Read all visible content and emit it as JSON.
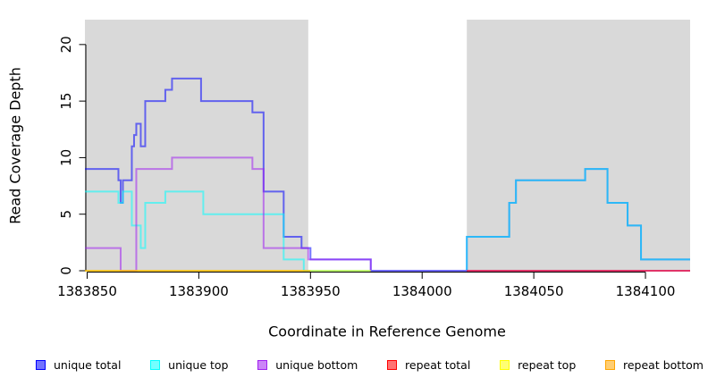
{
  "figure": {
    "x_axis_title": "Coordinate in Reference Genome",
    "y_axis_title": "Read Coverage Depth"
  },
  "chart_data": {
    "type": "step-line",
    "title": "",
    "xlabel": "Coordinate in Reference Genome",
    "ylabel": "Read Coverage Depth",
    "xlim": [
      1383849,
      1384120
    ],
    "ylim": [
      0,
      22.2
    ],
    "x_ticks": [
      1383850,
      1383900,
      1383950,
      1384000,
      1384050,
      1384100
    ],
    "y_ticks": [
      0,
      5,
      10,
      15,
      20
    ],
    "grid": false,
    "panel_background": "#ffffff",
    "shaded_region_color": "#d9d9d9",
    "shaded_regions": [
      {
        "x1": 1383849,
        "x2": 1383949
      },
      {
        "x1": 1384020,
        "x2": 1384120
      }
    ],
    "line_opacity": 0.55,
    "line_width": 2,
    "series": [
      {
        "name": "unique total",
        "color": "#0000ff",
        "end": 1384120,
        "points": [
          [
            1383849,
            9
          ],
          [
            1383864,
            8
          ],
          [
            1383865,
            6
          ],
          [
            1383866,
            8
          ],
          [
            1383870,
            11
          ],
          [
            1383871,
            12
          ],
          [
            1383872,
            13
          ],
          [
            1383874,
            11
          ],
          [
            1383876,
            15
          ],
          [
            1383885,
            16
          ],
          [
            1383888,
            17
          ],
          [
            1383901,
            15
          ],
          [
            1383924,
            14
          ],
          [
            1383929,
            7
          ],
          [
            1383938,
            3
          ],
          [
            1383946,
            2
          ],
          [
            1383950,
            1
          ],
          [
            1383977,
            0
          ],
          [
            1384020,
            3
          ],
          [
            1384039,
            6
          ],
          [
            1384042,
            8
          ],
          [
            1384073,
            9
          ],
          [
            1384083,
            6
          ],
          [
            1384092,
            4
          ],
          [
            1384098,
            1
          ]
        ]
      },
      {
        "name": "unique top",
        "color": "#00ffff",
        "end": 1384120,
        "points": [
          [
            1383849,
            7
          ],
          [
            1383864,
            6
          ],
          [
            1383866,
            7
          ],
          [
            1383870,
            4
          ],
          [
            1383874,
            2
          ],
          [
            1383876,
            6
          ],
          [
            1383885,
            7
          ],
          [
            1383902,
            5
          ],
          [
            1383938,
            1
          ],
          [
            1383947,
            0
          ],
          [
            1384020,
            3
          ],
          [
            1384039,
            6
          ],
          [
            1384042,
            8
          ],
          [
            1384073,
            9
          ],
          [
            1384083,
            6
          ],
          [
            1384092,
            4
          ],
          [
            1384098,
            1
          ]
        ]
      },
      {
        "name": "unique bottom",
        "color": "#a020f0",
        "end": 1384120,
        "points": [
          [
            1383849,
            2
          ],
          [
            1383865,
            0
          ],
          [
            1383872,
            9
          ],
          [
            1383888,
            10
          ],
          [
            1383924,
            9
          ],
          [
            1383929,
            2
          ],
          [
            1383949,
            1
          ],
          [
            1383977,
            0
          ]
        ]
      },
      {
        "name": "repeat total",
        "color": "#ff0000",
        "end": 1384120,
        "points": [
          [
            1384020,
            0
          ]
        ]
      },
      {
        "name": "repeat top",
        "color": "#ffff00",
        "end": 1383977,
        "points": [
          [
            1383849,
            0
          ]
        ]
      },
      {
        "name": "repeat bottom",
        "color": "#ffa500",
        "end": 1383950,
        "points": [
          [
            1383849,
            0
          ]
        ]
      }
    ]
  },
  "legend": {
    "items": [
      {
        "label": "unique total",
        "color": "#0000ff"
      },
      {
        "label": "unique top",
        "color": "#00ffff"
      },
      {
        "label": "unique bottom",
        "color": "#a020f0"
      },
      {
        "label": "repeat total",
        "color": "#ff0000"
      },
      {
        "label": "repeat top",
        "color": "#ffff00"
      },
      {
        "label": "repeat bottom",
        "color": "#ffa500"
      }
    ]
  }
}
